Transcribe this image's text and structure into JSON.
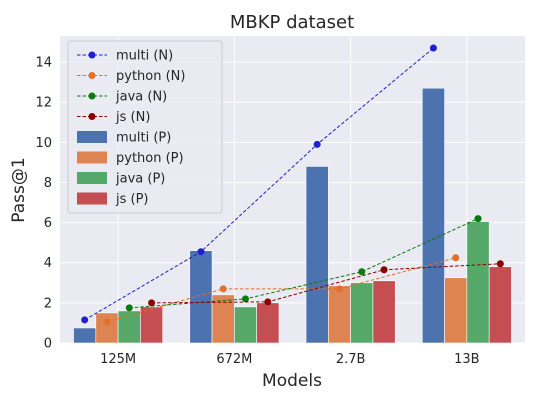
{
  "chart_data": {
    "type": "bar",
    "title": "MBKP dataset",
    "xlabel": "Models",
    "ylabel": "Pass@1",
    "categories": [
      "125M",
      "672M",
      "2.7B",
      "13B"
    ],
    "ylim": [
      0,
      15.3
    ],
    "yticks": [
      0,
      2,
      4,
      6,
      8,
      10,
      12,
      14
    ],
    "grid": true,
    "legend_position": "top-left",
    "bar_series": [
      {
        "name": "multi (P)",
        "color": "#4c72b0",
        "values": [
          0.75,
          4.6,
          8.8,
          12.7
        ]
      },
      {
        "name": "python (P)",
        "color": "#dd8452",
        "values": [
          1.5,
          2.4,
          2.85,
          3.25
        ]
      },
      {
        "name": "java (P)",
        "color": "#55a868",
        "values": [
          1.6,
          1.8,
          3.0,
          6.05
        ]
      },
      {
        "name": "js (P)",
        "color": "#c44e52",
        "values": [
          1.8,
          2.0,
          3.1,
          3.8
        ]
      }
    ],
    "line_series": [
      {
        "name": "multi (N)",
        "color": "#1f1fd1",
        "values": [
          1.15,
          4.55,
          9.9,
          14.7
        ]
      },
      {
        "name": "python (N)",
        "color": "#e0702a",
        "values": [
          1.05,
          2.7,
          2.7,
          4.25
        ]
      },
      {
        "name": "java (N)",
        "color": "#0b7a0b",
        "values": [
          1.75,
          2.2,
          3.55,
          6.2
        ]
      },
      {
        "name": "js (N)",
        "color": "#8b0000",
        "values": [
          2.0,
          2.05,
          3.65,
          3.95
        ]
      }
    ]
  }
}
